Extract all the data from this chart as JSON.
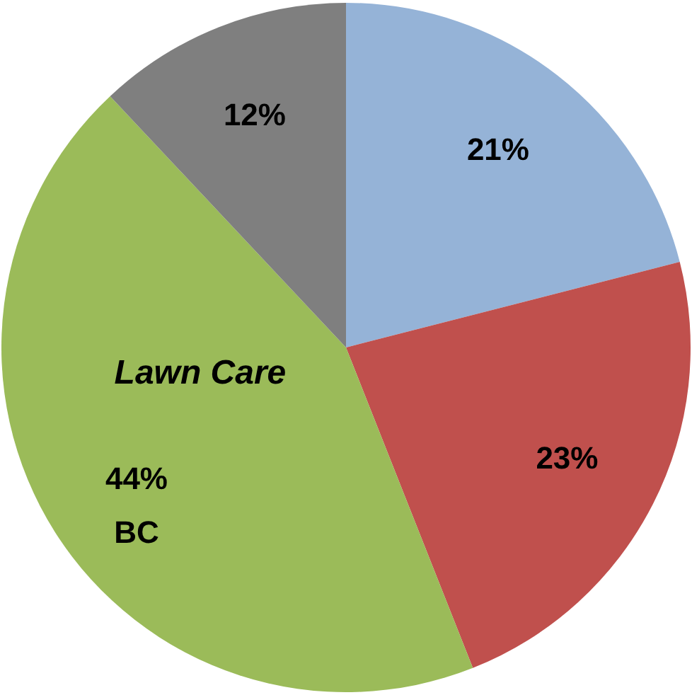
{
  "chart_data": {
    "type": "pie",
    "categories": [
      null,
      null,
      "Lawn Care",
      null
    ],
    "values": [
      21,
      23,
      44,
      12
    ],
    "colors": [
      "#95b3d7",
      "#c0504d",
      "#9bbb59",
      "#7f7f7f"
    ],
    "value_labels": [
      "21%",
      "23%",
      "44%",
      "12%"
    ],
    "legend": false,
    "annotations": [
      {
        "text": "BC",
        "x": "Lawn Care"
      }
    ]
  }
}
